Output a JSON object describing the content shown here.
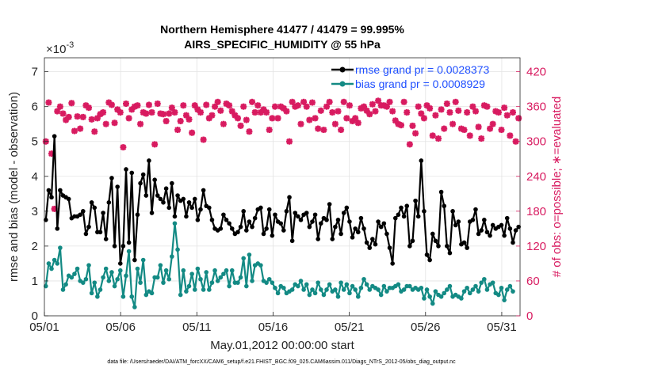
{
  "chart_data": {
    "type": "line",
    "title": "Northern Hemisphere 41477 / 41479 = 99.995%",
    "subtitle": "AIRS_SPECIFIC_HUMIDITY @ 55 hPa",
    "exponent_label": "×10",
    "exponent_power": "-3",
    "xlabel": "May.01,2012 00:00:00 start",
    "ylabel": "rmse and bias (model - observation)",
    "ylabel_right": "# of obs: o=possible; ∗=evaluated",
    "footnote": "data file: /Users/raeder/DAI/ATM_forcXX/CAM6_setup/f.e21.FHIST_BGC.f09_025.CAM6assim.011/Diags_NTrS_2012-05/obs_diag_output.nc",
    "xlim": [
      0,
      31.2
    ],
    "ylim": [
      0,
      7.4
    ],
    "ylim_right": [
      0,
      444
    ],
    "x_ticks": [
      0,
      5,
      10,
      15,
      20,
      25,
      30
    ],
    "x_tick_labels": [
      "05/01",
      "05/06",
      "05/11",
      "05/16",
      "05/21",
      "05/26",
      "05/31"
    ],
    "y_ticks": [
      "0",
      "1",
      "2",
      "3",
      "4",
      "5",
      "6",
      "7"
    ],
    "y_ticks_right": [
      "0",
      "60",
      "120",
      "180",
      "240",
      "300",
      "360",
      "420"
    ],
    "legend": [
      {
        "label": "rmse grand pr = 0.0028373",
        "color": "#000000"
      },
      {
        "label": "bias grand pr = 0.0008929",
        "color": "#138a84"
      }
    ],
    "colors": {
      "rmse": "#000000",
      "bias": "#138a84",
      "obs": "#d81b60"
    },
    "rmse": [
      2.75,
      3.6,
      3.4,
      5.15,
      2.5,
      3.6,
      3.45,
      3.4,
      3.35,
      2.8,
      2.85,
      2.85,
      2.9,
      3.0,
      2.35,
      2.55,
      3.25,
      3.1,
      2.4,
      2.4,
      2.95,
      2.2,
      3.25,
      3.95,
      2.0,
      3.7,
      1.5,
      2.0,
      4.2,
      2.1,
      4.1,
      1.6,
      2.9,
      3.8,
      4.05,
      3.45,
      4.45,
      2.95,
      3.9,
      3.45,
      3.35,
      3.25,
      3.65,
      3.1,
      3.8,
      2.85,
      3.45,
      3.3,
      3.35,
      2.85,
      3.25,
      3.1,
      3.35,
      2.75,
      3.05,
      3.6,
      3.15,
      3.1,
      2.75,
      2.5,
      2.45,
      2.5,
      2.9,
      2.75,
      2.65,
      2.5,
      2.35,
      2.4,
      2.55,
      3.0,
      2.45,
      2.7,
      2.55,
      2.8,
      3.05,
      3.1,
      2.35,
      2.5,
      3.05,
      2.3,
      2.9,
      2.7,
      2.65,
      2.45,
      3.0,
      3.4,
      2.15,
      2.95,
      2.85,
      2.75,
      2.9,
      2.95,
      2.55,
      2.7,
      2.9,
      2.2,
      2.65,
      2.8,
      2.75,
      3.2,
      2.2,
      2.55,
      2.75,
      2.35,
      2.95,
      3.1,
      2.7,
      2.25,
      2.5,
      2.4,
      2.8,
      2.5,
      2.1,
      1.95,
      2.2,
      2.05,
      2.7,
      2.55,
      2.65,
      2.35,
      1.95,
      1.5,
      2.8,
      2.9,
      3.1,
      2.85,
      3.15,
      2.0,
      2.15,
      3.3,
      2.85,
      4.45,
      3.0,
      1.75,
      1.6,
      2.35,
      2.15,
      2.0,
      3.55,
      3.15,
      2.0,
      1.8,
      3.0,
      2.6,
      2.7,
      2.05,
      2.1,
      1.95,
      2.7,
      2.75,
      3.05,
      2.35,
      2.45,
      2.75,
      2.4,
      2.3,
      2.6,
      2.5,
      2.55,
      2.6,
      2.3,
      2.8,
      2.5,
      2.1,
      2.45,
      2.55
    ],
    "bias": [
      0.85,
      1.5,
      1.35,
      1.6,
      1.5,
      1.95,
      0.75,
      0.9,
      1.15,
      1.1,
      1.2,
      1.35,
      1.0,
      0.95,
      1.05,
      1.45,
      0.65,
      0.95,
      0.55,
      0.75,
      1.1,
      1.35,
      1.0,
      1.25,
      0.85,
      1.05,
      1.3,
      0.55,
      1.15,
      1.85,
      0.55,
      0.25,
      1.35,
      0.95,
      1.6,
      0.6,
      0.7,
      0.65,
      1.1,
      1.1,
      1.45,
      0.95,
      1.3,
      1.05,
      1.7,
      2.65,
      1.9,
      0.6,
      1.3,
      0.7,
      0.85,
      1.2,
      0.75,
      1.35,
      1.05,
      0.75,
      1.25,
      0.75,
      0.95,
      1.3,
      1.0,
      1.1,
      1.2,
      1.3,
      0.85,
      1.3,
      0.95,
      0.95,
      1.1,
      1.65,
      0.85,
      1.75,
      1.0,
      1.45,
      1.5,
      1.45,
      1.0,
      0.95,
      1.05,
      0.95,
      0.8,
      0.65,
      0.85,
      0.8,
      0.65,
      0.7,
      0.75,
      0.9,
      0.85,
      1.0,
      0.75,
      0.9,
      0.6,
      0.75,
      0.65,
      0.95,
      0.75,
      0.6,
      0.75,
      0.9,
      0.7,
      0.75,
      0.55,
      0.95,
      0.75,
      0.9,
      0.65,
      0.85,
      0.75,
      0.55,
      0.8,
      1.05,
      0.9,
      0.75,
      0.85,
      0.8,
      0.75,
      0.6,
      0.85,
      0.7,
      0.8,
      0.8,
      0.85,
      0.9,
      0.7,
      0.75,
      0.85,
      0.85,
      0.75,
      0.8,
      0.75,
      0.8,
      0.5,
      0.75,
      0.55,
      0.35,
      0.7,
      0.6,
      0.55,
      0.65,
      0.75,
      0.85,
      0.55,
      0.6,
      0.55,
      0.5,
      0.7,
      0.8,
      0.65,
      0.75,
      0.85,
      0.7,
      0.95,
      1.05,
      0.75,
      0.9,
      0.95,
      0.65,
      0.6,
      0.8,
      0.45,
      0.75,
      0.85,
      0.7
    ],
    "obs_evaluated": [
      300,
      367,
      279,
      184,
      352,
      360,
      348,
      337,
      342,
      366,
      318,
      343,
      322,
      342,
      362,
      358,
      338,
      317,
      340,
      347,
      350,
      330,
      367,
      363,
      332,
      355,
      350,
      290,
      365,
      340,
      355,
      360,
      362,
      330,
      350,
      348,
      363,
      350,
      295,
      365,
      348,
      347,
      335,
      348,
      358,
      350,
      320,
      335,
      362,
      345,
      338,
      315,
      362,
      355,
      350,
      303,
      363,
      340,
      345,
      360,
      368,
      353,
      330,
      365,
      362,
      352,
      345,
      340,
      327,
      360,
      337,
      317,
      368,
      350,
      362,
      350,
      355,
      350,
      320,
      340,
      360,
      340,
      360,
      357,
      352,
      300,
      368,
      360,
      362,
      330,
      368,
      360,
      337,
      367,
      340,
      322,
      353,
      320,
      360,
      368,
      350,
      330,
      352,
      320,
      368,
      340,
      362,
      335,
      340,
      332,
      357,
      360,
      353,
      347,
      364,
      352,
      370,
      362,
      362,
      360,
      368,
      352,
      336,
      330,
      328,
      368,
      350,
      295,
      327,
      314,
      360,
      348,
      340,
      362,
      357,
      310,
      345,
      305,
      355,
      322,
      365,
      350,
      330,
      368,
      353,
      322,
      320,
      350,
      310,
      360,
      352,
      325,
      305,
      362,
      360,
      322,
      330,
      352,
      350,
      320,
      358,
      345,
      310,
      350,
      300,
      340
    ]
  }
}
